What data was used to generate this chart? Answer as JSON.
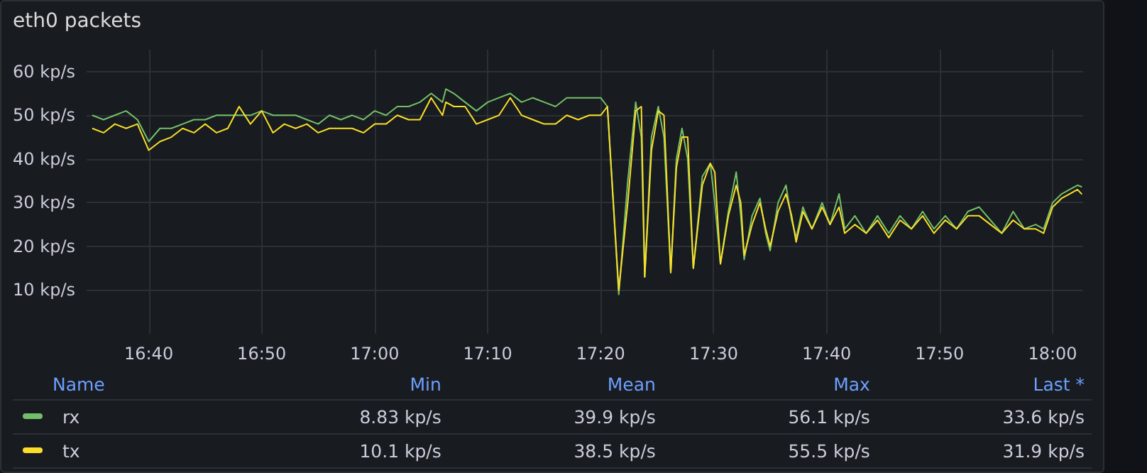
{
  "chart_data": {
    "type": "line",
    "title": "eth0 packets",
    "x": [
      16.5833,
      16.6,
      16.6167,
      16.6333,
      16.65,
      16.6667,
      16.6833,
      16.7,
      16.7167,
      16.7333,
      16.75,
      16.7667,
      16.7833,
      16.8,
      16.8167,
      16.8333,
      16.85,
      16.8667,
      16.8833,
      16.9,
      16.9167,
      16.9333,
      16.95,
      16.9667,
      16.9833,
      17,
      17.0167,
      17.0333,
      17.05,
      17.0667,
      17.0833,
      17.1,
      17.105,
      17.1167,
      17.1333,
      17.15,
      17.1667,
      17.1833,
      17.2,
      17.2167,
      17.2333,
      17.25,
      17.2667,
      17.2833,
      17.3,
      17.3167,
      17.3333,
      17.3433,
      17.36,
      17.3733,
      17.385,
      17.3933,
      17.3983,
      17.4083,
      17.4183,
      17.4267,
      17.4367,
      17.445,
      17.4533,
      17.4617,
      17.47,
      17.4833,
      17.495,
      17.5017,
      17.51,
      17.5217,
      17.5333,
      17.54,
      17.545,
      17.5567,
      17.5683,
      17.5767,
      17.5833,
      17.595,
      17.6067,
      17.615,
      17.6217,
      17.6317,
      17.645,
      17.66,
      17.6717,
      17.685,
      17.6933,
      17.7083,
      17.725,
      17.7417,
      17.7583,
      17.775,
      17.7917,
      17.8083,
      17.825,
      17.8417,
      17.8583,
      17.875,
      17.8917,
      17.9083,
      17.925,
      17.9417,
      17.9583,
      17.975,
      17.9867,
      18,
      18.0133,
      18.025,
      18.0367,
      18.0433
    ],
    "series": [
      {
        "name": "rx",
        "color": "#73bf69",
        "values": [
          50,
          49,
          50,
          51,
          49,
          44,
          47,
          47,
          48,
          49,
          49,
          50,
          50,
          50,
          50,
          51,
          50,
          50,
          50,
          49,
          48,
          50,
          49,
          50,
          49,
          51,
          50,
          52,
          52,
          53,
          55,
          53,
          56,
          55,
          53,
          51,
          53,
          54,
          55,
          53,
          54,
          53,
          52,
          54,
          54,
          54,
          54,
          52,
          9,
          35,
          53,
          45,
          13,
          45,
          52,
          45,
          14,
          40,
          47,
          40,
          15,
          36,
          39,
          30,
          16,
          28,
          37,
          27,
          17,
          27,
          31,
          23,
          19,
          30,
          34,
          26,
          22,
          29,
          24,
          30,
          25,
          32,
          24,
          27,
          23,
          27,
          23,
          27,
          24,
          28,
          24,
          27,
          24,
          28,
          29,
          26,
          23,
          28,
          24,
          25,
          24,
          30,
          32,
          33,
          34,
          33.6
        ]
      },
      {
        "name": "tx",
        "color": "#fade2a",
        "values": [
          47,
          46,
          48,
          47,
          48,
          42,
          44,
          45,
          47,
          46,
          48,
          46,
          47,
          52,
          48,
          51,
          46,
          48,
          47,
          48,
          46,
          47,
          47,
          47,
          46,
          48,
          48,
          50,
          49,
          49,
          54,
          50,
          53,
          52,
          52,
          48,
          49,
          50,
          54,
          50,
          49,
          48,
          48,
          50,
          49,
          50,
          50,
          52,
          10,
          30,
          51,
          52,
          13,
          42,
          51,
          50,
          14,
          38,
          45,
          45,
          15,
          34,
          39,
          37,
          16,
          27,
          34,
          30,
          18,
          25,
          30,
          24,
          20,
          28,
          32,
          27,
          21,
          28,
          24,
          29,
          25,
          29,
          23,
          25,
          23,
          26,
          22,
          26,
          24,
          27,
          23,
          26,
          24,
          27,
          27,
          25,
          23,
          26,
          24,
          24,
          23,
          29,
          31,
          32,
          33,
          31.9
        ]
      }
    ],
    "xlim": [
      16.575,
      18.045
    ],
    "xticks": [
      {
        "value": 16.6667,
        "label": "16:40"
      },
      {
        "value": 16.8333,
        "label": "16:50"
      },
      {
        "value": 17,
        "label": "17:00"
      },
      {
        "value": 17.1667,
        "label": "17:10"
      },
      {
        "value": 17.3333,
        "label": "17:20"
      },
      {
        "value": 17.5,
        "label": "17:30"
      },
      {
        "value": 17.6667,
        "label": "17:40"
      },
      {
        "value": 17.8333,
        "label": "17:50"
      },
      {
        "value": 18,
        "label": "18:00"
      }
    ],
    "ylim": [
      0,
      65
    ],
    "yticks": [
      {
        "value": 10,
        "label": "10 kp/s"
      },
      {
        "value": 20,
        "label": "20 kp/s"
      },
      {
        "value": 30,
        "label": "30 kp/s"
      },
      {
        "value": 40,
        "label": "40 kp/s"
      },
      {
        "value": 50,
        "label": "50 kp/s"
      },
      {
        "value": 60,
        "label": "60 kp/s"
      }
    ],
    "grid": true,
    "legend": "bottom",
    "marker": "none",
    "line_style": "solid",
    "annotations": [
      "Name",
      "Min",
      "Mean",
      "Max",
      "Last *",
      "8.83 kp/s",
      "39.9 kp/s",
      "56.1 kp/s",
      "33.6 kp/s",
      "10.1 kp/s",
      "38.5 kp/s",
      "55.5 kp/s",
      "31.9 kp/s"
    ]
  }
}
